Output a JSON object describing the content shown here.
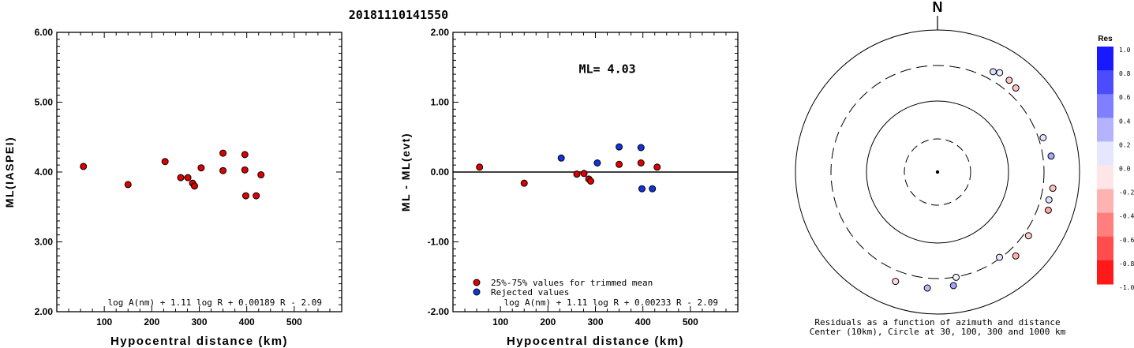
{
  "title": "20181110141550",
  "chart_data": [
    {
      "type": "scatter",
      "id": "left",
      "xlabel": "Hypocentral distance (km)",
      "ylabel": "ML(IASPEI)",
      "xlim": [
        0,
        600
      ],
      "ylim": [
        2.0,
        6.0
      ],
      "xticks": [
        100,
        200,
        300,
        400,
        500
      ],
      "yticks": [
        2.0,
        3.0,
        4.0,
        5.0,
        6.0
      ],
      "xtick_labels": [
        "100",
        "200",
        "300",
        "400",
        "500"
      ],
      "ytick_labels": [
        "2.00",
        "3.00",
        "4.00",
        "5.00",
        "6.00"
      ],
      "formula": "log A(nm) + 1.11 log R + 0.00189 R - 2.09",
      "series": [
        {
          "color": "#dd0000",
          "points": [
            [
              56,
              4.08
            ],
            [
              150,
              3.82
            ],
            [
              228,
              4.15
            ],
            [
              261,
              3.92
            ],
            [
              276,
              3.92
            ],
            [
              286,
              3.84
            ],
            [
              290,
              3.8
            ],
            [
              304,
              4.06
            ],
            [
              350,
              4.27
            ],
            [
              350,
              4.02
            ],
            [
              396,
              4.25
            ],
            [
              396,
              4.03
            ],
            [
              398,
              3.66
            ],
            [
              420,
              3.66
            ],
            [
              430,
              3.96
            ]
          ]
        }
      ]
    },
    {
      "type": "scatter",
      "id": "middle",
      "xlabel": "Hypocentral distance (km)",
      "ylabel": "ML - ML(evt)",
      "xlim": [
        0,
        600
      ],
      "ylim": [
        -2.0,
        2.0
      ],
      "xticks": [
        100,
        200,
        300,
        400,
        500
      ],
      "yticks": [
        -2.0,
        -1.0,
        0.0,
        1.0,
        2.0
      ],
      "xtick_labels": [
        "100",
        "200",
        "300",
        "400",
        "500"
      ],
      "ytick_labels": [
        "-2.00",
        "-1.00",
        "0.00",
        "1.00",
        "2.00"
      ],
      "annotation": "ML= 4.03",
      "formula": "log A(nm) + 1.11 log R + 0.00233 R - 2.09",
      "legend": [
        "25%-75% values for trimmed mean",
        "Rejected values"
      ],
      "series": [
        {
          "color": "#dd0000",
          "points": [
            [
              56,
              0.07
            ],
            [
              150,
              -0.16
            ],
            [
              261,
              -0.03
            ],
            [
              276,
              -0.02
            ],
            [
              286,
              -0.1
            ],
            [
              290,
              -0.13
            ],
            [
              350,
              0.11
            ],
            [
              396,
              0.13
            ],
            [
              430,
              0.07
            ]
          ]
        },
        {
          "color": "#1133dd",
          "points": [
            [
              228,
              0.2
            ],
            [
              304,
              0.13
            ],
            [
              350,
              0.36
            ],
            [
              396,
              0.35
            ],
            [
              398,
              -0.24
            ],
            [
              420,
              -0.24
            ]
          ]
        }
      ]
    },
    {
      "type": "scatter",
      "id": "polar",
      "north_label": "N",
      "caption_line1": "Residuals as a function of azimuth and distance",
      "caption_line2": "Center (10km), Circle at 30, 100, 300 and 1000 km",
      "colorbar_title": "Res",
      "colorbar_ticks": [
        "1.0",
        "0.8",
        "0.6",
        "0.4",
        "0.2",
        "0.0",
        "-0.2",
        "-0.4",
        "-0.6",
        "-0.8",
        "-1.0"
      ],
      "stations": [
        {
          "dist_km": 396,
          "az_deg": 29,
          "res": 0.13
        },
        {
          "dist_km": 430,
          "az_deg": 32,
          "res": 0.07
        },
        {
          "dist_km": 420,
          "az_deg": 38,
          "res": -0.24
        },
        {
          "dist_km": 398,
          "az_deg": 43,
          "res": -0.24
        },
        {
          "dist_km": 350,
          "az_deg": 72,
          "res": 0.11
        },
        {
          "dist_km": 396,
          "az_deg": 82,
          "res": 0.35
        },
        {
          "dist_km": 420,
          "az_deg": 98,
          "res": -0.24
        },
        {
          "dist_km": 398,
          "az_deg": 104,
          "res": 0.13
        },
        {
          "dist_km": 430,
          "az_deg": 109,
          "res": -0.35
        },
        {
          "dist_km": 350,
          "az_deg": 125,
          "res": -0.2
        },
        {
          "dist_km": 396,
          "az_deg": 137,
          "res": -0.31
        },
        {
          "dist_km": 290,
          "az_deg": 144,
          "res": 0.1
        },
        {
          "dist_km": 304,
          "az_deg": 170,
          "res": 0.06
        },
        {
          "dist_km": 396,
          "az_deg": 172,
          "res": 0.36
        },
        {
          "dist_km": 420,
          "az_deg": 185,
          "res": 0.28
        },
        {
          "dist_km": 430,
          "az_deg": 201,
          "res": -0.16
        }
      ]
    }
  ]
}
